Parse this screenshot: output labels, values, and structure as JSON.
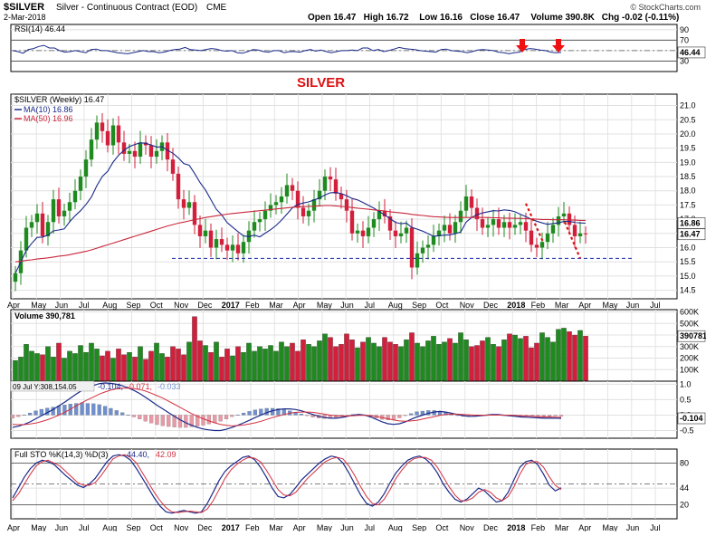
{
  "header": {
    "symbol": "$SILVER",
    "name": "Silver - Continuous Contract (EOD)",
    "exchange": "CME",
    "date": "2-Mar-2018",
    "credit": "© StockCharts.com",
    "ohlc": [
      {
        "label": "Open",
        "value": "16.47"
      },
      {
        "label": "High",
        "value": "16.72"
      },
      {
        "label": "Low",
        "value": "16.16"
      },
      {
        "label": "Close",
        "value": "16.47"
      },
      {
        "label": "Volume",
        "value": "390.8K"
      },
      {
        "label": "Chg",
        "value": "-0.02 (-0.11%)"
      }
    ]
  },
  "annotations": {
    "chart_title": "SILVER",
    "arrow_color": "#ee1111",
    "annotation_color": "#dd1111"
  },
  "colors": {
    "up": "#1f8a1f",
    "down": "#d21f3c",
    "ma10": "#1a2a8a",
    "ma50": "#c8283c",
    "panel_bg": "#ffffff",
    "hist": "#6f8fce"
  },
  "chart_data": [
    {
      "type": "line",
      "panel": "rsi",
      "label": "RSI(14)",
      "value_label": "46.44",
      "yticks": [
        30,
        50,
        70,
        90
      ],
      "ylim": [
        10,
        100
      ],
      "reference_lines": [
        30,
        70
      ],
      "series": [
        {
          "name": "RSI(14)",
          "values": [
            50,
            48,
            45,
            52,
            54,
            58,
            60,
            55,
            55,
            50,
            47,
            48,
            50,
            48,
            46,
            52,
            53,
            50,
            50,
            48,
            46,
            45,
            44,
            46,
            48,
            50,
            48,
            48,
            46,
            47,
            50,
            52,
            53,
            56,
            52,
            51,
            50,
            52,
            54,
            53,
            50,
            49,
            50,
            46,
            45,
            48,
            52,
            51,
            48,
            47,
            50,
            50,
            46,
            48,
            48,
            47,
            50,
            52,
            49,
            51,
            48,
            46,
            48,
            50,
            50,
            51,
            50,
            55,
            55,
            50,
            52,
            48,
            50,
            53,
            56,
            54,
            53,
            52,
            50,
            49,
            48,
            47,
            52,
            53,
            50,
            49,
            48,
            46,
            48,
            51,
            52,
            51,
            50,
            47,
            46,
            44,
            46,
            47,
            52,
            54,
            53,
            51,
            50,
            47,
            46,
            46.44
          ]
        }
      ]
    },
    {
      "type": "candlestick",
      "panel": "price",
      "label": "$SILVER (Weekly)",
      "value_label": "16.47",
      "ylim": [
        14.2,
        21.4
      ],
      "yticks": [
        14.5,
        15.0,
        15.5,
        16.0,
        16.5,
        17.0,
        17.5,
        18.0,
        18.5,
        19.0,
        19.5,
        20.0,
        20.5,
        21.0
      ],
      "price_tags": [
        {
          "label": "16.86",
          "value": 16.86
        },
        {
          "label": "16.47",
          "value": 16.47
        }
      ],
      "support_level": 15.62,
      "x_month_labels": [
        "Apr",
        "May",
        "Jun",
        "Jul",
        "Aug",
        "Sep",
        "Oct",
        "Nov",
        "Dec",
        "2017",
        "Feb",
        "Mar",
        "Apr",
        "May",
        "Jun",
        "Jul",
        "Aug",
        "Sep",
        "Oct",
        "Nov",
        "Dec",
        "2018",
        "Feb",
        "Mar",
        "Apr",
        "May",
        "Jun",
        "Jul"
      ],
      "legend": [
        {
          "name": "MA(10)",
          "value": "16.86"
        },
        {
          "name": "MA(50)",
          "value": "16.96"
        }
      ],
      "close": [
        15.1,
        15.9,
        16.7,
        16.9,
        17.2,
        16.4,
        16.9,
        17.7,
        17.1,
        17.3,
        17.6,
        18.0,
        18.5,
        19.1,
        19.8,
        20.4,
        20.1,
        19.6,
        20.3,
        19.7,
        19.3,
        19.4,
        19.2,
        19.7,
        19.6,
        19.2,
        19.4,
        19.7,
        19.1,
        18.6,
        17.7,
        17.4,
        17.6,
        16.8,
        16.4,
        16.6,
        16.0,
        16.3,
        16.1,
        15.9,
        16.1,
        15.8,
        16.2,
        16.6,
        16.9,
        17.0,
        17.3,
        17.5,
        17.6,
        17.8,
        18.2,
        18.0,
        17.4,
        17.1,
        17.3,
        17.7,
        18.0,
        18.5,
        18.4,
        17.9,
        17.7,
        17.3,
        16.5,
        16.6,
        16.4,
        16.7,
        17.0,
        17.3,
        17.1,
        16.6,
        16.4,
        16.5,
        16.7,
        15.3,
        15.8,
        16.0,
        16.1,
        16.4,
        16.6,
        16.8,
        16.5,
        16.9,
        17.3,
        17.8,
        17.4,
        17.0,
        16.7,
        16.8,
        17.0,
        16.7,
        16.9,
        16.7,
        16.8,
        16.9,
        16.6,
        16.1,
        16.0,
        16.2,
        16.5,
        16.8,
        17.1,
        17.2,
        16.8,
        16.4,
        16.5,
        16.47
      ],
      "series": [
        {
          "name": "MA(10)",
          "values": [
            15.1,
            15.5,
            15.9,
            16.15,
            16.36,
            16.37,
            16.44,
            16.59,
            16.62,
            16.66,
            16.91,
            17.12,
            17.3,
            17.52,
            17.78,
            18.18,
            18.5,
            18.69,
            19.01,
            19.25,
            19.42,
            19.56,
            19.63,
            19.69,
            19.67,
            19.61,
            19.54,
            19.55,
            19.43,
            19.32,
            19.16,
            18.96,
            18.9,
            18.61,
            18.29,
            18.03,
            17.69,
            17.35,
            17.15,
            16.88,
            16.72,
            16.56,
            16.41,
            16.39,
            16.44,
            16.38,
            16.51,
            16.63,
            16.78,
            16.97,
            17.18,
            17.4,
            17.52,
            17.57,
            17.61,
            17.68,
            17.75,
            17.85,
            17.93,
            17.94,
            17.9,
            17.83,
            17.73,
            17.68,
            17.59,
            17.49,
            17.39,
            17.27,
            17.15,
            17.02,
            16.89,
            16.84,
            16.86,
            16.71,
            16.65,
            16.58,
            16.49,
            16.4,
            16.42,
            16.44,
            16.45,
            16.49,
            16.55,
            16.9,
            17.06,
            17.16,
            17.22,
            17.26,
            17.3,
            17.29,
            17.33,
            17.31,
            17.26,
            17.17,
            17.09,
            17.0,
            16.93,
            16.87,
            16.82,
            16.85,
            16.87,
            16.92,
            16.92,
            16.89,
            16.87,
            16.86
          ]
        },
        {
          "name": "MA(50)",
          "values": [
            15.5,
            15.52,
            15.55,
            15.57,
            15.6,
            15.62,
            15.64,
            15.67,
            15.7,
            15.72,
            15.75,
            15.79,
            15.83,
            15.87,
            15.92,
            15.98,
            16.04,
            16.1,
            16.16,
            16.22,
            16.28,
            16.34,
            16.4,
            16.46,
            16.52,
            16.58,
            16.64,
            16.7,
            16.76,
            16.81,
            16.86,
            16.9,
            16.94,
            16.98,
            17.02,
            17.06,
            17.09,
            17.12,
            17.15,
            17.18,
            17.2,
            17.22,
            17.24,
            17.26,
            17.28,
            17.3,
            17.32,
            17.34,
            17.36,
            17.38,
            17.4,
            17.42,
            17.43,
            17.44,
            17.45,
            17.46,
            17.47,
            17.48,
            17.48,
            17.47,
            17.45,
            17.43,
            17.41,
            17.39,
            17.37,
            17.35,
            17.33,
            17.31,
            17.29,
            17.26,
            17.24,
            17.22,
            17.2,
            17.17,
            17.15,
            17.13,
            17.11,
            17.09,
            17.08,
            17.07,
            17.06,
            17.06,
            17.06,
            17.06,
            17.06,
            17.06,
            17.06,
            17.06,
            17.05,
            17.05,
            17.04,
            17.04,
            17.03,
            17.03,
            17.02,
            17.01,
            17.0,
            16.99,
            16.99,
            16.98,
            16.98,
            16.98,
            16.97,
            16.97,
            16.96,
            16.96
          ]
        }
      ]
    },
    {
      "type": "bar",
      "panel": "volume",
      "label": "Volume",
      "value_label": "390,781",
      "ylim": [
        0,
        620
      ],
      "yticks": [
        100,
        200,
        300,
        400,
        500,
        600
      ],
      "ytick_labels": [
        "100K",
        "200K",
        "300K",
        "400K",
        "500K",
        "600K"
      ],
      "value_tag": "390781",
      "series": [
        {
          "name": "Volume (K)",
          "values": [
            180,
            210,
            320,
            260,
            240,
            230,
            300,
            210,
            330,
            200,
            260,
            240,
            310,
            250,
            330,
            280,
            220,
            260,
            200,
            280,
            230,
            250,
            210,
            300,
            190,
            260,
            330,
            240,
            210,
            300,
            280,
            230,
            340,
            560,
            350,
            310,
            250,
            340,
            210,
            280,
            220,
            300,
            250,
            330,
            260,
            300,
            280,
            310,
            260,
            340,
            300,
            330,
            260,
            360,
            320,
            300,
            350,
            410,
            380,
            300,
            320,
            410,
            360,
            290,
            340,
            380,
            330,
            300,
            380,
            340,
            320,
            300,
            360,
            420,
            330,
            300,
            350,
            390,
            320,
            340,
            370,
            330,
            420,
            360,
            300,
            310,
            350,
            380,
            320,
            300,
            360,
            410,
            400,
            370,
            390,
            290,
            330,
            420,
            380,
            340,
            450,
            460,
            430,
            400,
            440,
            391
          ]
        }
      ]
    },
    {
      "type": "line",
      "panel": "macd",
      "label": "MACD(12,26,9)",
      "values_label": [
        "-0.104",
        "-0.071",
        "-0.033"
      ],
      "tooltip": "09 Jul Y:308,154.05",
      "ylim": [
        -0.75,
        1.1
      ],
      "yticks": [
        -0.5,
        0.0,
        0.5,
        1.0
      ],
      "value_tag": "-0.104",
      "series": [
        {
          "name": "MACD",
          "values": [
            -0.4,
            -0.36,
            -0.3,
            -0.22,
            -0.12,
            -0.02,
            0.08,
            0.18,
            0.3,
            0.42,
            0.55,
            0.68,
            0.8,
            0.88,
            0.96,
            1.02,
            1.04,
            1.03,
            1.0,
            0.95,
            0.88,
            0.8,
            0.7,
            0.58,
            0.45,
            0.32,
            0.2,
            0.08,
            -0.04,
            -0.15,
            -0.25,
            -0.33,
            -0.4,
            -0.45,
            -0.48,
            -0.5,
            -0.5,
            -0.46,
            -0.4,
            -0.33,
            -0.25,
            -0.17,
            -0.08,
            0.0,
            0.08,
            0.14,
            0.18,
            0.2,
            0.2,
            0.18,
            0.14,
            0.08,
            0.02,
            -0.04,
            -0.08,
            -0.1,
            -0.1,
            -0.08,
            -0.04,
            0.0,
            0.02,
            0.0,
            -0.06,
            -0.14,
            -0.22,
            -0.28,
            -0.3,
            -0.28,
            -0.22,
            -0.14,
            -0.06,
            0.0,
            0.06,
            0.1,
            0.12,
            0.1,
            0.06,
            0.02,
            -0.02,
            -0.04,
            -0.04,
            -0.02,
            0.0,
            0.02,
            0.02,
            0.0,
            -0.02,
            -0.04,
            -0.06,
            -0.07,
            -0.08,
            -0.09,
            -0.1,
            -0.1,
            -0.1,
            -0.104
          ]
        },
        {
          "name": "Signal",
          "values": [
            -0.3,
            -0.31,
            -0.31,
            -0.29,
            -0.26,
            -0.21,
            -0.15,
            -0.08,
            0.0,
            0.09,
            0.19,
            0.3,
            0.4,
            0.5,
            0.59,
            0.68,
            0.75,
            0.81,
            0.85,
            0.87,
            0.87,
            0.86,
            0.83,
            0.78,
            0.71,
            0.63,
            0.55,
            0.45,
            0.35,
            0.25,
            0.15,
            0.05,
            -0.04,
            -0.12,
            -0.19,
            -0.25,
            -0.3,
            -0.33,
            -0.35,
            -0.34,
            -0.32,
            -0.29,
            -0.25,
            -0.2,
            -0.14,
            -0.08,
            -0.03,
            0.02,
            0.06,
            0.09,
            0.1,
            0.1,
            0.09,
            0.06,
            0.03,
            0.0,
            -0.02,
            -0.03,
            -0.03,
            -0.02,
            -0.01,
            -0.01,
            -0.02,
            -0.05,
            -0.08,
            -0.12,
            -0.16,
            -0.19,
            -0.2,
            -0.19,
            -0.17,
            -0.13,
            -0.09,
            -0.05,
            -0.01,
            0.02,
            0.03,
            0.03,
            0.02,
            0.01,
            0.0,
            0.0,
            0.0,
            0.0,
            0.0,
            0.0,
            0.0,
            -0.01,
            -0.02,
            -0.03,
            -0.04,
            -0.05,
            -0.06,
            -0.06,
            -0.07,
            -0.071
          ]
        }
      ]
    },
    {
      "type": "line",
      "panel": "stochastic",
      "label": "Full STO %K(14,3) %D(3)",
      "values_label": [
        "44.40",
        "42.09"
      ],
      "ylim": [
        0,
        100
      ],
      "yticks": [
        20,
        44,
        80
      ],
      "series": [
        {
          "name": "%K",
          "values": [
            30,
            45,
            60,
            72,
            80,
            84,
            82,
            78,
            70,
            62,
            55,
            48,
            45,
            50,
            58,
            70,
            82,
            90,
            92,
            90,
            84,
            72,
            58,
            44,
            30,
            18,
            10,
            8,
            10,
            12,
            10,
            8,
            10,
            22,
            38,
            55,
            68,
            76,
            82,
            88,
            90,
            85,
            74,
            60,
            44,
            32,
            30,
            35,
            45,
            56,
            64,
            72,
            80,
            86,
            90,
            88,
            80,
            66,
            50,
            34,
            22,
            18,
            24,
            36,
            52,
            66,
            76,
            84,
            88,
            90,
            86,
            78,
            66,
            50,
            38,
            28,
            24,
            28,
            36,
            44,
            40,
            32,
            24,
            26,
            38,
            56,
            74,
            82,
            84,
            78,
            64,
            48,
            40,
            44.4
          ]
        },
        {
          "name": "%D",
          "values": [
            26,
            36,
            50,
            64,
            76,
            82,
            84,
            80,
            76,
            68,
            60,
            52,
            48,
            48,
            52,
            62,
            74,
            86,
            90,
            92,
            88,
            80,
            66,
            52,
            38,
            26,
            16,
            10,
            9,
            10,
            11,
            10,
            9,
            14,
            26,
            42,
            58,
            70,
            78,
            84,
            88,
            87,
            82,
            70,
            56,
            42,
            34,
            33,
            38,
            48,
            58,
            66,
            74,
            82,
            86,
            88,
            86,
            76,
            62,
            46,
            32,
            22,
            20,
            28,
            42,
            58,
            70,
            80,
            86,
            88,
            88,
            84,
            74,
            60,
            46,
            34,
            26,
            26,
            30,
            38,
            42,
            38,
            30,
            26,
            32,
            46,
            64,
            78,
            82,
            82,
            74,
            60,
            48,
            42.09
          ]
        }
      ],
      "reference_lines": [
        20,
        80
      ]
    }
  ]
}
